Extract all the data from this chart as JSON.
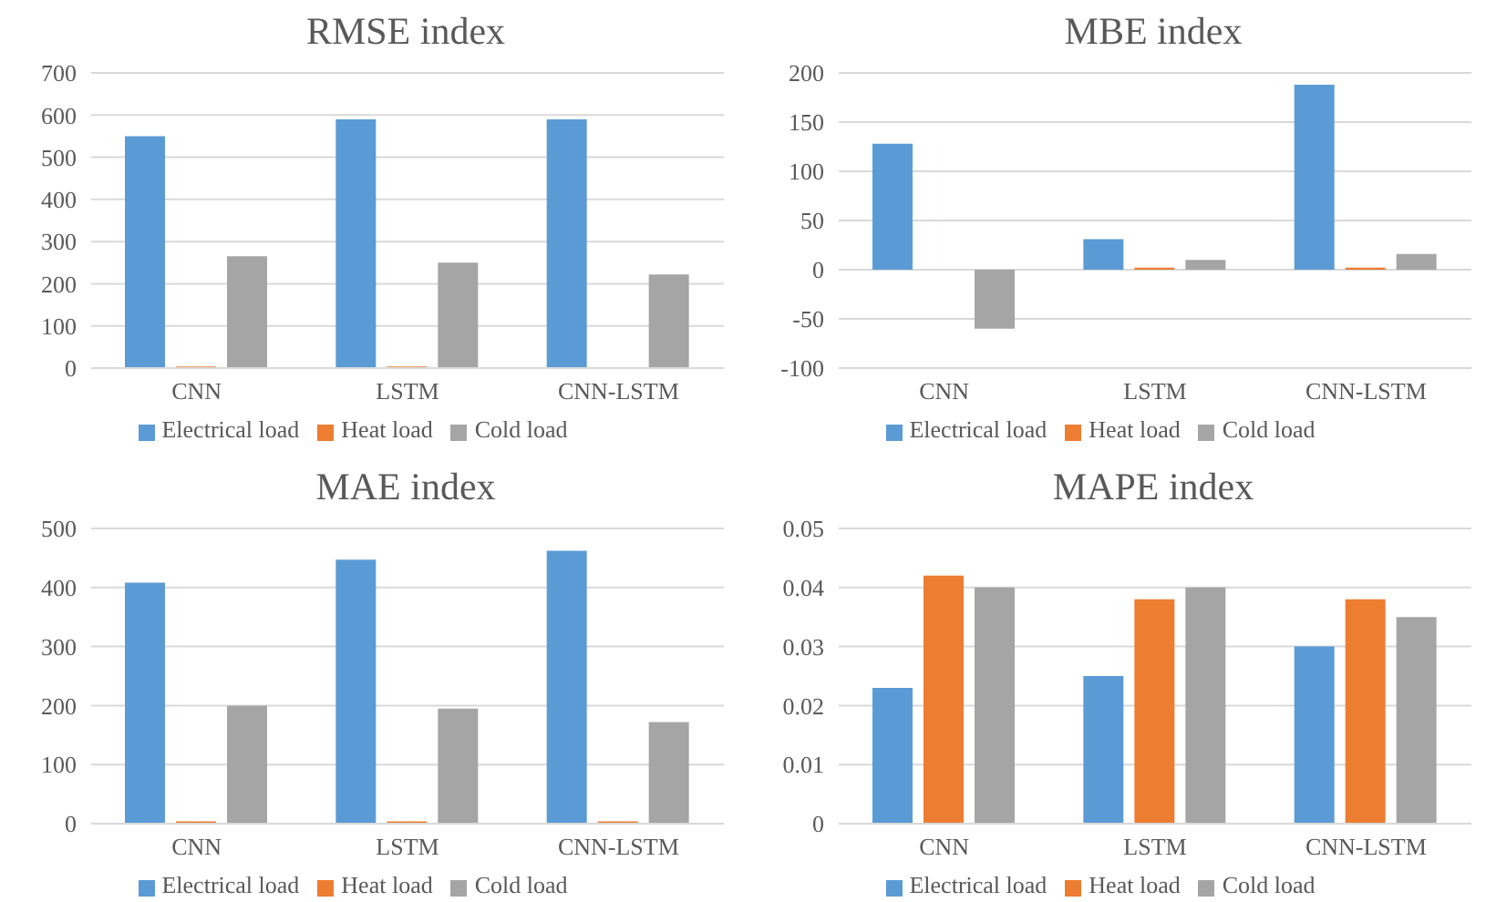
{
  "chart_data": [
    {
      "type": "bar",
      "title": "RMSE index",
      "categories": [
        "CNN",
        "LSTM",
        "CNN-LSTM"
      ],
      "series": [
        {
          "name": "Electrical load",
          "color": "#5b9bd5",
          "values": [
            550,
            590,
            590
          ]
        },
        {
          "name": "Heat load",
          "color": "#ed7d31",
          "values": [
            4,
            4,
            null
          ]
        },
        {
          "name": "Cold load",
          "color": "#a5a5a5",
          "values": [
            265,
            250,
            222
          ]
        }
      ],
      "ylim": [
        0,
        700
      ],
      "yticks": [
        0,
        100,
        200,
        300,
        400,
        500,
        600,
        700
      ],
      "grid": "y",
      "legend": "bottom"
    },
    {
      "type": "bar",
      "title": "MBE index",
      "categories": [
        "CNN",
        "LSTM",
        "CNN-LSTM"
      ],
      "series": [
        {
          "name": "Electrical load",
          "color": "#5b9bd5",
          "values": [
            128,
            31,
            188
          ]
        },
        {
          "name": "Heat load",
          "color": "#ed7d31",
          "values": [
            null,
            2,
            2
          ]
        },
        {
          "name": "Cold load",
          "color": "#a5a5a5",
          "values": [
            -60,
            10,
            16
          ]
        }
      ],
      "ylim": [
        -100,
        200
      ],
      "yticks": [
        -100,
        -50,
        0,
        50,
        100,
        150,
        200
      ],
      "grid": "y",
      "legend": "bottom"
    },
    {
      "type": "bar",
      "title": "MAE index",
      "categories": [
        "CNN",
        "LSTM",
        "CNN-LSTM"
      ],
      "series": [
        {
          "name": "Electrical load",
          "color": "#5b9bd5",
          "values": [
            408,
            447,
            462
          ]
        },
        {
          "name": "Heat load",
          "color": "#ed7d31",
          "values": [
            4,
            4,
            4
          ]
        },
        {
          "name": "Cold load",
          "color": "#a5a5a5",
          "values": [
            200,
            195,
            172
          ]
        }
      ],
      "ylim": [
        0,
        500
      ],
      "yticks": [
        0,
        100,
        200,
        300,
        400,
        500
      ],
      "grid": "y",
      "legend": "bottom"
    },
    {
      "type": "bar",
      "title": "MAPE index",
      "categories": [
        "CNN",
        "LSTM",
        "CNN-LSTM"
      ],
      "series": [
        {
          "name": "Electrical load",
          "color": "#5b9bd5",
          "values": [
            0.023,
            0.025,
            0.03
          ]
        },
        {
          "name": "Heat load",
          "color": "#ed7d31",
          "values": [
            0.042,
            0.038,
            0.038
          ]
        },
        {
          "name": "Cold load",
          "color": "#a5a5a5",
          "values": [
            0.04,
            0.04,
            0.035
          ]
        }
      ],
      "ylim": [
        0,
        0.05
      ],
      "yticks": [
        0,
        0.01,
        0.02,
        0.03,
        0.04,
        0.05
      ],
      "grid": "y",
      "legend": "bottom"
    }
  ]
}
